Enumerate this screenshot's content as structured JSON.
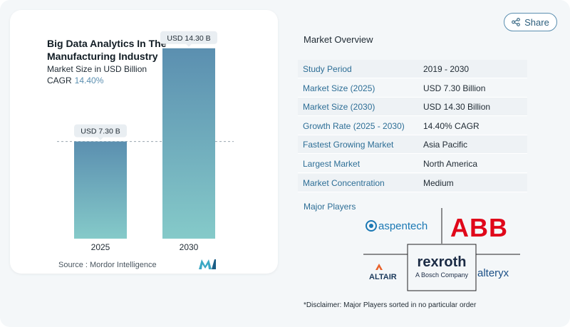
{
  "header": {
    "share_label": "Share",
    "share_icon": "share-icon"
  },
  "chart": {
    "title": "Big Data Analytics In The Manufacturing Industry",
    "subtitle": "Market Size in USD Billion",
    "cagr_label": "CAGR",
    "cagr_value": "14.40%",
    "source": "Source :  Mordor Intelligence"
  },
  "chart_data": {
    "type": "bar",
    "categories": [
      "2025",
      "2030"
    ],
    "values": [
      7.3,
      14.3
    ],
    "data_labels": [
      "USD 7.30 B",
      "USD 14.30 B"
    ],
    "ylim": [
      0,
      16
    ],
    "colors": [
      "#5b8fb0",
      "#85cac9"
    ]
  },
  "overview": {
    "title": "Market Overview",
    "rows": [
      {
        "label": "Study Period",
        "value": "2019 - 2030"
      },
      {
        "label": "Market Size (2025)",
        "value": "USD 7.30 Billion"
      },
      {
        "label": "Market Size (2030)",
        "value": "USD 14.30 Billion"
      },
      {
        "label": "Growth Rate (2025 - 2030)",
        "value": "14.40% CAGR"
      },
      {
        "label": "Fastest Growing Market",
        "value": "Asia Pacific"
      },
      {
        "label": "Largest Market",
        "value": "North America"
      },
      {
        "label": "Market Concentration",
        "value": "Medium"
      }
    ]
  },
  "players": {
    "label": "Major Players",
    "logos": {
      "aspentech": "aspentech",
      "abb": "ABB",
      "rexroth": "rexroth",
      "rexroth_sub": "A Bosch Company",
      "altair": "ALTAIR",
      "alteryx": "alteryx"
    }
  },
  "disclaimer": "*Disclaimer: Major Players sorted in no particular order"
}
